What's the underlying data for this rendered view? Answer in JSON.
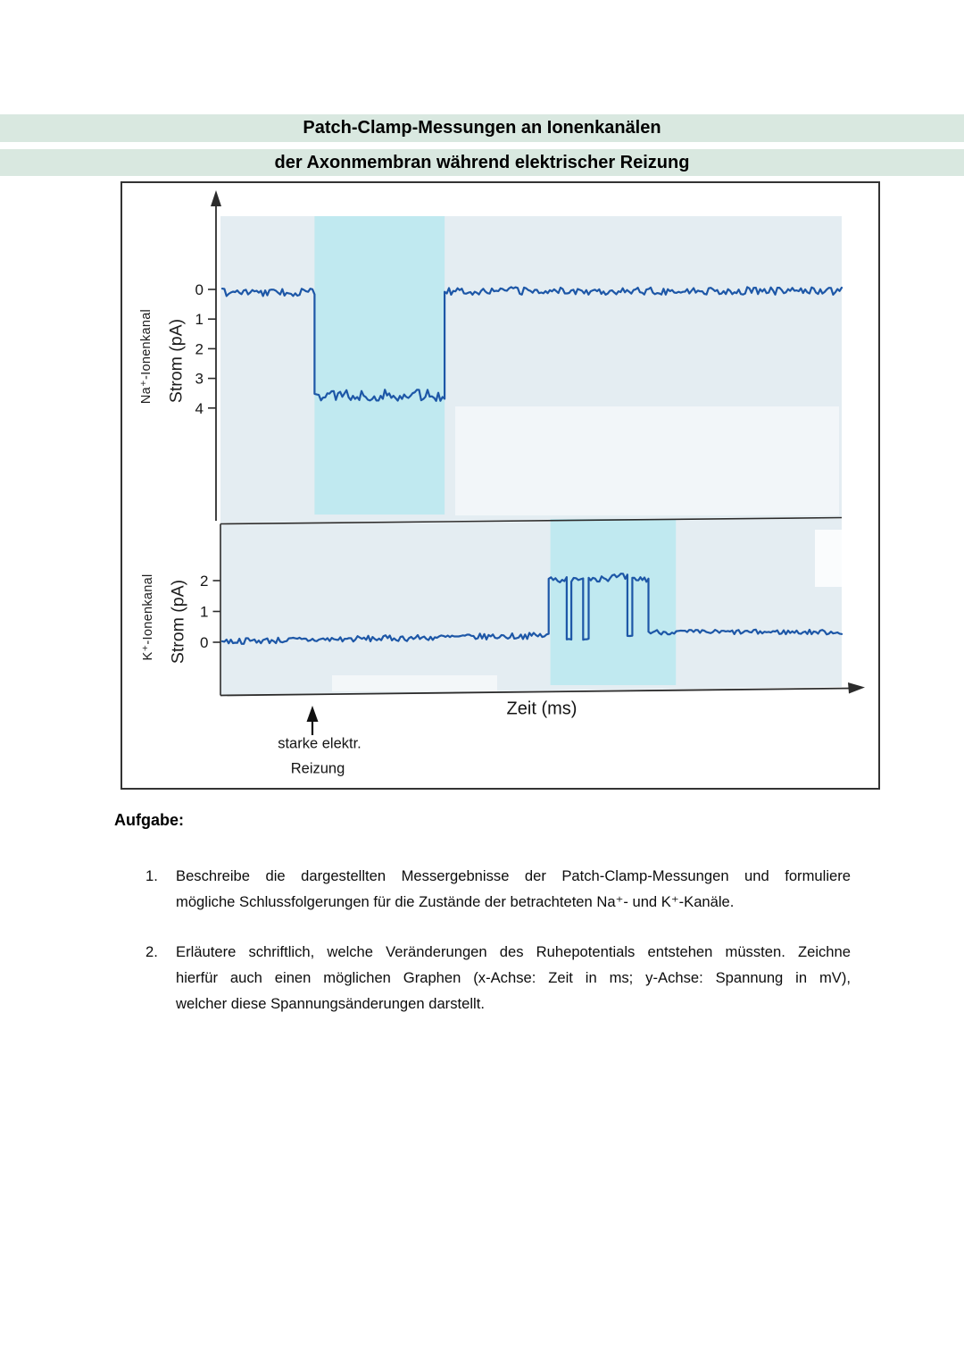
{
  "title": {
    "line1": "Patch-Clamp-Messungen an Ionenkanälen",
    "line2": "der Axonmembran während elektrischer Reizung",
    "band_color": "#d9e8e0"
  },
  "chart_data": {
    "type": "line",
    "xlabel": "Zeit (ms)",
    "x_unit": "ms",
    "y_unit": "pA",
    "annotation": {
      "line1": "starke elektr.",
      "line2": "Reizung"
    },
    "colors": {
      "plot_bg": "#e4edf2",
      "stim_band": "#c0e9f0",
      "trace": "#1d57a7",
      "axis": "#2c2c2c"
    },
    "panels": [
      {
        "id": "na-channel",
        "channel_label": "Na⁺-Ionenkanal",
        "axis_label": "Strom (pA)",
        "yticks": [
          0,
          1,
          2,
          3,
          4
        ],
        "y_direction": "down",
        "stim_band": [
          0.149,
          0.359
        ],
        "segments": [
          {
            "x": [
              0,
              0.149
            ],
            "v": 0.1,
            "noise": 0.13
          },
          {
            "x": [
              0.149,
              0.359
            ],
            "v": 3.57,
            "noise": 0.19
          },
          {
            "x": [
              0.359,
              1.0
            ],
            "v": 0.05,
            "noise": 0.13
          }
        ]
      },
      {
        "id": "k-channel",
        "channel_label": "K⁺-Ionenkanal",
        "axis_label": "Strom (pA)",
        "yticks": [
          2,
          1,
          0
        ],
        "y_direction": "up",
        "stim_band": [
          0.5297,
          0.7323
        ],
        "segments": [
          {
            "x": [
              0,
              0.527
            ],
            "v0": 0.03,
            "v1": 0.22,
            "noise": 0.1
          },
          {
            "x": [
              0.527,
              0.556
            ],
            "v": 2.05,
            "noise": 0.12
          },
          {
            "x": [
              0.556,
              0.5635
            ],
            "v": 0.12,
            "noise": 0.04
          },
          {
            "x": [
              0.5635,
              0.5825
            ],
            "v": 2.0,
            "noise": 0.1
          },
          {
            "x": [
              0.5825,
              0.5915
            ],
            "v": 0.12,
            "noise": 0.04
          },
          {
            "x": [
              0.5915,
              0.654
            ],
            "v": 2.1,
            "noise": 0.13
          },
          {
            "x": [
              0.654,
              0.662
            ],
            "v": 0.18,
            "noise": 0.04
          },
          {
            "x": [
              0.662,
              0.688
            ],
            "v": 2.05,
            "noise": 0.1
          },
          {
            "x": [
              0.688,
              1.0
            ],
            "v": 0.33,
            "noise": 0.08
          }
        ]
      }
    ]
  },
  "tasks": {
    "heading": "Aufgabe:",
    "items": [
      {
        "number": "1.",
        "lines": [
          "Beschreibe die dargestellten Messergebnisse der Patch-Clamp-Messungen und formuliere",
          "mögliche Schlussfolgerungen für die Zustände der betrachteten Na⁺- und K⁺-Kanäle."
        ]
      },
      {
        "number": "2.",
        "lines": [
          "Erläutere schriftlich, welche Veränderungen des Ruhepotentials entstehen müssten. Zeichne",
          "hierfür auch einen möglichen Graphen (x-Achse: Zeit in ms; y-Achse: Spannung in mV),",
          "welcher diese Spannungsänderungen darstellt."
        ]
      }
    ]
  }
}
